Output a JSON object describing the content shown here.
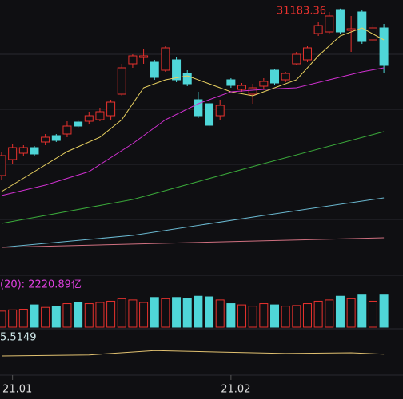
{
  "chart_data": {
    "type": "candlestick",
    "ylim": [
      24500,
      31400
    ],
    "up_color": "#e8322e",
    "down_color": "#4fd6d8",
    "open": [
      27000,
      27400,
      27560,
      27700,
      27840,
      28000,
      28040,
      28340,
      28360,
      28400,
      28500,
      29040,
      29800,
      29960,
      29840,
      29640,
      29900,
      29560,
      28900,
      28800,
      28500,
      29400,
      29160,
      29040,
      29240,
      29640,
      29400,
      29800,
      29900,
      30560,
      30600,
      31160,
      30640,
      31100,
      30400,
      30700
    ],
    "high": [
      27600,
      27800,
      27760,
      27740,
      28040,
      28040,
      28360,
      28400,
      28600,
      28700,
      28900,
      29800,
      30040,
      30160,
      29900,
      30240,
      29960,
      29640,
      29100,
      28900,
      28900,
      29440,
      29320,
      29300,
      29440,
      29680,
      29600,
      30100,
      30240,
      30840,
      31100,
      31183.36,
      31000,
      31140,
      30800,
      30800
    ],
    "low": [
      26900,
      27300,
      27500,
      27480,
      27760,
      27840,
      27960,
      28200,
      28300,
      28360,
      28400,
      29000,
      29700,
      29800,
      29400,
      29600,
      29340,
      29240,
      28440,
      28200,
      28400,
      29200,
      29100,
      28800,
      29160,
      29280,
      29340,
      29760,
      29840,
      30500,
      30560,
      30560,
      30100,
      30300,
      30360,
      29560
    ],
    "close": [
      27500,
      27700,
      27700,
      27540,
      27960,
      27880,
      28240,
      28240,
      28500,
      28600,
      28840,
      29700,
      30000,
      30000,
      29460,
      30200,
      29400,
      29300,
      28500,
      28260,
      28760,
      29260,
      29260,
      29200,
      29360,
      29320,
      29560,
      30040,
      30200,
      30760,
      31000,
      30600,
      30680,
      30360,
      30700,
      29760
    ],
    "max_label": "31183.36",
    "lines": [
      {
        "color": "#e8d060",
        "x": [
          0,
          3,
          6,
          9,
          11,
          13,
          15,
          17,
          19,
          21,
          23,
          25,
          27,
          29,
          31,
          33,
          35
        ],
        "values": [
          26600,
          27100,
          27600,
          27960,
          28400,
          29200,
          29400,
          29500,
          29300,
          29100,
          29000,
          29200,
          29400,
          30000,
          30500,
          30700,
          30400
        ]
      },
      {
        "color": "#d030d0",
        "x": [
          0,
          4,
          8,
          12,
          15,
          18,
          21,
          24,
          27,
          30,
          33,
          35
        ],
        "values": [
          26500,
          26760,
          27100,
          27800,
          28400,
          28800,
          29100,
          29160,
          29200,
          29400,
          29600,
          29700
        ]
      },
      {
        "color": "#3aa83a",
        "x": [
          0,
          12,
          24,
          35
        ],
        "values": [
          25800,
          26400,
          27300,
          28100
        ]
      },
      {
        "color": "#6ab8d0",
        "x": [
          0,
          12,
          24,
          35
        ],
        "values": [
          25200,
          25500,
          26000,
          26440
        ]
      },
      {
        "color": "#d07080",
        "x": [
          0,
          35
        ],
        "values": [
          25200,
          25440
        ]
      }
    ],
    "volume": {
      "label": "(20): 2220.89亿",
      "ylim": [
        0,
        4000
      ],
      "values": [
        1300,
        1400,
        1450,
        1800,
        1600,
        1700,
        1900,
        2000,
        1900,
        2000,
        2100,
        2300,
        2200,
        2000,
        2400,
        2300,
        2400,
        2300,
        2500,
        2450,
        2200,
        1900,
        1800,
        1700,
        1900,
        1800,
        1700,
        1750,
        1900,
        2100,
        2200,
        2500,
        2300,
        2600,
        2100,
        2600
      ]
    },
    "indicator": {
      "label": "5.5149",
      "ylim": [
        0,
        10
      ],
      "color": "#e0c070",
      "x": [
        0,
        8,
        14,
        20,
        26,
        32,
        35
      ],
      "values": [
        3.1,
        3.4,
        4.6,
        4.2,
        3.8,
        4.0,
        3.6
      ]
    },
    "xticks": [
      {
        "value": 1,
        "label": "21.01"
      },
      {
        "value": 21,
        "label": "21.02"
      }
    ]
  }
}
